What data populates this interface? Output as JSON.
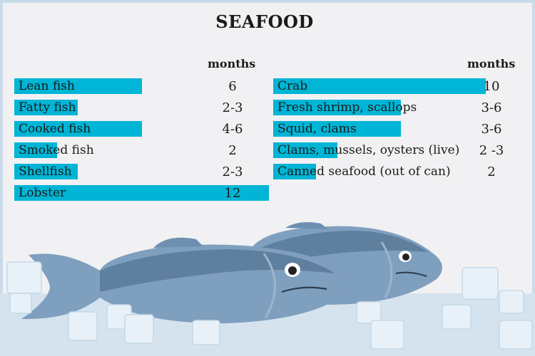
{
  "title": "SEAFOOD",
  "chart_data": {
    "type": "bar",
    "title": "SEAFOOD",
    "unit_label": "months",
    "columns": [
      {
        "header": "months",
        "rows": [
          {
            "category": "Lean fish",
            "value": 6,
            "value_label": "6"
          },
          {
            "category": "Fatty fish",
            "value": 3,
            "value_label": "2-3"
          },
          {
            "category": "Cooked fish",
            "value": 6,
            "value_label": "4-6"
          },
          {
            "category": "Smoked fish",
            "value": 2,
            "value_label": "2"
          },
          {
            "category": "Shellfish",
            "value": 3,
            "value_label": "2-3"
          },
          {
            "category": "Lobster",
            "value": 12,
            "value_label": "12"
          }
        ]
      },
      {
        "header": "months",
        "rows": [
          {
            "category": "Crab",
            "value": 10,
            "value_label": "10"
          },
          {
            "category": "Fresh shrimp, scallops",
            "value": 6,
            "value_label": "3-6"
          },
          {
            "category": "Squid, clams",
            "value": 6,
            "value_label": "3-6"
          },
          {
            "category": "Clams, mussels, oysters (live)",
            "value": 3,
            "value_label": "2 -3"
          },
          {
            "category": "Canned seafood (out of can)",
            "value": 2,
            "value_label": "2"
          }
        ]
      }
    ],
    "xlim": [
      0,
      12
    ]
  },
  "colors": {
    "bar": "#00b5d6",
    "panel": "#f1f1f3",
    "fish_back": "#5f7f9f",
    "fish_body": "#7f9fbf",
    "fish_belly": "#a9c0d6"
  },
  "icons": [
    "fish-illustration-icon",
    "ice-cube-icon"
  ]
}
